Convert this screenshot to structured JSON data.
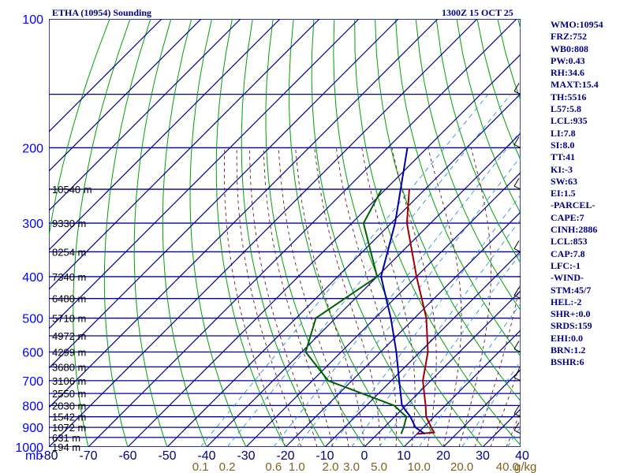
{
  "header": {
    "left_title": "ETHA (10954) Sounding",
    "right_title": "1300Z 15 OCT 25"
  },
  "indices": [
    "WMO:10954",
    "FRZ:752",
    "WB0:808",
    "PW:0.43",
    "RH:34.6",
    "MAXT:15.4",
    "TH:5516",
    "L57:5.8",
    "LCL:935",
    "LI:7.8",
    "SI:8.0",
    "TT:41",
    "KI:-3",
    "SW:63",
    "EI:1.5",
    "-PARCEL-",
    "CAPE:7",
    "CINH:2886",
    "LCL:853",
    "CAP:7.8",
    "LFC:-1",
    "-WIND-",
    "STM:45/7",
    "HEL:-2",
    "SHR+:0.0",
    "SRDS:159",
    "EHI:0.0",
    "BRN:1.2",
    "BSHR:6"
  ],
  "colors": {
    "frame": "#000080",
    "isobar": "#0000a0",
    "isotherm": "#0000a0",
    "dry_adiabat": "#00a000",
    "moist_adiabat": "#602020",
    "mixing_ratio": "#3090d0",
    "pressure_label": "#0000ff",
    "temp_label": "#000080",
    "mix_label": "#806020",
    "height_label": "#000000",
    "temperature": "#a00000",
    "dewpoint": "#006000",
    "parcel": "#0000a0"
  },
  "chart_data": {
    "type": "line",
    "xlabel": "",
    "ylabel": "mb",
    "pressure_ticks": [
      100,
      200,
      300,
      400,
      500,
      600,
      700,
      800,
      900,
      1000
    ],
    "temperature_ticks": [
      -80,
      -70,
      -60,
      -50,
      -40,
      -30,
      -20,
      -10,
      0,
      10,
      20,
      30,
      40
    ],
    "temperature_range": [
      -80,
      40
    ],
    "pressure_range": [
      100,
      1000
    ],
    "mixing_ratio_ticks": [
      "0.1",
      "0.2",
      "0.6",
      "1.0",
      "2.0",
      "3.0",
      "5.0",
      "10.0",
      "20.0",
      "40.0"
    ],
    "mixing_ratio_unit": "g/kg",
    "grid": true,
    "height_labels": [
      {
        "p": 250,
        "text": "10540 m"
      },
      {
        "p": 300,
        "text": "9330 m"
      },
      {
        "p": 350,
        "text": "8254 m"
      },
      {
        "p": 400,
        "text": "7340 m"
      },
      {
        "p": 450,
        "text": "6480 m"
      },
      {
        "p": 500,
        "text": "5710 m"
      },
      {
        "p": 550,
        "text": "4972 m"
      },
      {
        "p": 600,
        "text": "4299 m"
      },
      {
        "p": 650,
        "text": "3680 m"
      },
      {
        "p": 700,
        "text": "3106 m"
      },
      {
        "p": 750,
        "text": "2550 m"
      },
      {
        "p": 800,
        "text": "2030 m"
      },
      {
        "p": 850,
        "text": "1542 m"
      },
      {
        "p": 900,
        "text": "1072 m"
      },
      {
        "p": 950,
        "text": "631 m"
      },
      {
        "p": 1000,
        "text": "194 m"
      }
    ],
    "series": [
      {
        "key": "temperature",
        "points": [
          [
            250,
            -54
          ],
          [
            300,
            -46
          ],
          [
            400,
            -30
          ],
          [
            500,
            -17
          ],
          [
            600,
            -8
          ],
          [
            700,
            -2
          ],
          [
            800,
            5
          ],
          [
            850,
            8
          ],
          [
            900,
            12
          ],
          [
            925,
            14
          ],
          [
            932,
            10
          ]
        ]
      },
      {
        "key": "dewpoint",
        "points": [
          [
            250,
            -61
          ],
          [
            300,
            -57
          ],
          [
            400,
            -40
          ],
          [
            500,
            -45
          ],
          [
            600,
            -39
          ],
          [
            700,
            -26
          ],
          [
            800,
            -3
          ],
          [
            850,
            3
          ],
          [
            900,
            5
          ],
          [
            932,
            6
          ]
        ]
      },
      {
        "key": "parcel",
        "points": [
          [
            200,
            -65
          ],
          [
            300,
            -49
          ],
          [
            400,
            -39
          ],
          [
            500,
            -26
          ],
          [
            600,
            -16
          ],
          [
            700,
            -8
          ],
          [
            800,
            -1
          ],
          [
            850,
            4
          ],
          [
            900,
            8
          ],
          [
            932,
            12
          ]
        ]
      }
    ],
    "wind_barbs": [
      {
        "p": 150,
        "text": ""
      },
      {
        "p": 200,
        "text": ""
      },
      {
        "p": 250,
        "text": ""
      },
      {
        "p": 350,
        "text": ""
      },
      {
        "p": 450,
        "text": ""
      },
      {
        "p": 600,
        "text": ""
      },
      {
        "p": 700,
        "text": ""
      },
      {
        "p": 850,
        "text": ""
      },
      {
        "p": 930,
        "text": ""
      }
    ]
  }
}
